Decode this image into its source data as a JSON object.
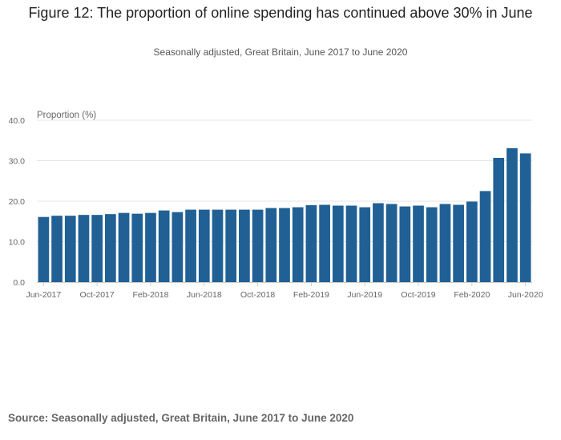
{
  "title": "Figure 12: The proportion of online spending has continued above 30% in June",
  "subtitle": "Seasonally adjusted, Great Britain, June 2017 to June 2020",
  "source": "Source: Seasonally adjusted, Great Britain, June 2017 to June 2020",
  "colors": {
    "bar": "#206095",
    "grid": "#e5e5e5",
    "axis": "#cccccc",
    "text": "#666666"
  },
  "chart_data": {
    "type": "bar",
    "ylabel": "Proportion (%)",
    "ylim": [
      0,
      40
    ],
    "yticks": [
      "0.0",
      "10.0",
      "20.0",
      "30.0",
      "40.0"
    ],
    "grid": true,
    "categories": [
      "Jun-2017",
      "Jul-2017",
      "Aug-2017",
      "Sep-2017",
      "Oct-2017",
      "Nov-2017",
      "Dec-2017",
      "Jan-2018",
      "Feb-2018",
      "Mar-2018",
      "Apr-2018",
      "May-2018",
      "Jun-2018",
      "Jul-2018",
      "Aug-2018",
      "Sep-2018",
      "Oct-2018",
      "Nov-2018",
      "Dec-2018",
      "Jan-2019",
      "Feb-2019",
      "Mar-2019",
      "Apr-2019",
      "May-2019",
      "Jun-2019",
      "Jul-2019",
      "Aug-2019",
      "Sep-2019",
      "Oct-2019",
      "Nov-2019",
      "Dec-2019",
      "Jan-2020",
      "Feb-2020",
      "Mar-2020",
      "Apr-2020",
      "May-2020",
      "Jun-2020"
    ],
    "xtick_labels": [
      "Jun-2017",
      "Oct-2017",
      "Feb-2018",
      "Jun-2018",
      "Oct-2018",
      "Feb-2019",
      "Jun-2019",
      "Oct-2019",
      "Feb-2020",
      "Jun-2020"
    ],
    "values": [
      16.1,
      16.4,
      16.4,
      16.6,
      16.6,
      16.8,
      17.1,
      16.9,
      17.1,
      17.7,
      17.3,
      17.9,
      17.9,
      17.9,
      17.9,
      17.9,
      17.9,
      18.3,
      18.3,
      18.5,
      19.0,
      19.1,
      18.9,
      18.9,
      18.5,
      19.5,
      19.3,
      18.7,
      18.9,
      18.5,
      19.3,
      19.1,
      19.9,
      22.5,
      30.7,
      33.1,
      31.8
    ]
  }
}
